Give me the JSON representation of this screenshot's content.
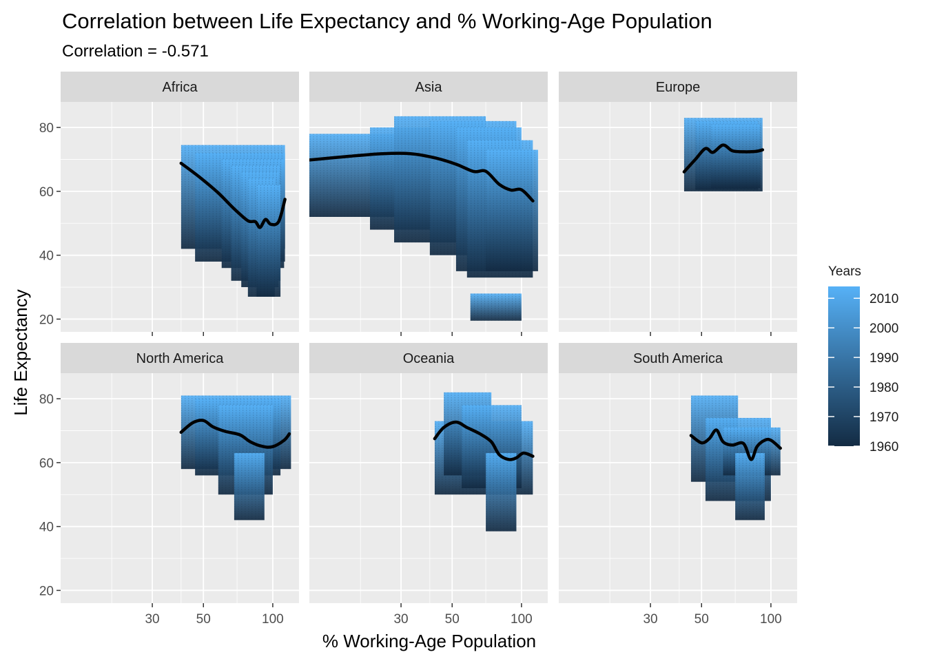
{
  "chart_data": {
    "type": "scatter",
    "title": "Correlation between Life Expectancy and % Working-Age Population",
    "subtitle": "Correlation = -0.571",
    "xlabel": "% Working-Age Population",
    "ylabel": "Life Expectancy",
    "x_scale": "log10",
    "x_ticks": [
      30,
      50,
      100
    ],
    "xlim": [
      12,
      130
    ],
    "y_ticks": [
      20,
      40,
      60,
      80
    ],
    "ylim": [
      16,
      88
    ],
    "grid": true,
    "legend": {
      "title": "Years",
      "position": "right",
      "ticks": [
        1960,
        1970,
        1980,
        1990,
        2000,
        2010
      ],
      "range": [
        1960,
        2014
      ],
      "colors": {
        "low": "#132B43",
        "high": "#56B1F7"
      }
    },
    "smooth_color": "#000000",
    "facets": [
      {
        "name": "Africa",
        "smooth": [
          [
            40,
            68.8
          ],
          [
            48,
            64.5
          ],
          [
            58,
            59.5
          ],
          [
            68,
            54.5
          ],
          [
            78,
            50.8
          ],
          [
            84,
            50.5
          ],
          [
            88,
            48.7
          ],
          [
            93,
            51.2
          ],
          [
            98,
            49.7
          ],
          [
            106,
            50.5
          ],
          [
            113,
            57.5
          ]
        ],
        "blocks": [
          {
            "x": [
              40,
              113
            ],
            "y": [
              42,
              74.5
            ]
          },
          {
            "x": [
              46,
              113
            ],
            "y": [
              38,
              72
            ]
          },
          {
            "x": [
              60,
              112
            ],
            "y": [
              36,
              70
            ]
          },
          {
            "x": [
              66,
              108
            ],
            "y": [
              32,
              68
            ]
          },
          {
            "x": [
              73,
              106
            ],
            "y": [
              30,
              66
            ]
          },
          {
            "x": [
              78,
              102
            ],
            "y": [
              27,
              64
            ]
          },
          {
            "x": [
              85,
              108
            ],
            "y": [
              27,
              62
            ]
          }
        ]
      },
      {
        "name": "Asia",
        "smooth": [
          [
            12,
            69.8
          ],
          [
            18,
            71
          ],
          [
            25,
            71.8
          ],
          [
            33,
            71.8
          ],
          [
            42,
            70.5
          ],
          [
            52,
            68.5
          ],
          [
            62,
            66.2
          ],
          [
            70,
            66.3
          ],
          [
            80,
            62.2
          ],
          [
            90,
            60.4
          ],
          [
            100,
            60.5
          ],
          [
            112,
            57
          ]
        ],
        "blocks": [
          {
            "x": [
              12,
              33
            ],
            "y": [
              52,
              78
            ]
          },
          {
            "x": [
              22,
              62
            ],
            "y": [
              48,
              80
            ]
          },
          {
            "x": [
              28,
              70
            ],
            "y": [
              44,
              83.5
            ]
          },
          {
            "x": [
              40,
              95
            ],
            "y": [
              40,
              82
            ]
          },
          {
            "x": [
              52,
              100
            ],
            "y": [
              35,
              80
            ]
          },
          {
            "x": [
              58,
              112
            ],
            "y": [
              33,
              76
            ]
          },
          {
            "x": [
              70,
              118
            ],
            "y": [
              35,
              73
            ]
          },
          {
            "x": [
              60,
              100
            ],
            "y": [
              19.5,
              28
            ]
          }
        ]
      },
      {
        "name": "Europe",
        "smooth": [
          [
            42,
            66.1
          ],
          [
            47,
            70
          ],
          [
            52,
            73.4
          ],
          [
            56,
            72.2
          ],
          [
            62,
            74.5
          ],
          [
            68,
            72.7
          ],
          [
            76,
            72.4
          ],
          [
            86,
            72.5
          ],
          [
            92,
            73
          ]
        ],
        "blocks": [
          {
            "x": [
              42,
              92
            ],
            "y": [
              60,
              83
            ]
          },
          {
            "x": [
              47,
              88
            ],
            "y": [
              60.5,
              82
            ]
          },
          {
            "x": [
              55,
              90
            ],
            "y": [
              61,
              81
            ]
          }
        ]
      },
      {
        "name": "North America",
        "smooth": [
          [
            40,
            69.5
          ],
          [
            45,
            72.5
          ],
          [
            50,
            73.2
          ],
          [
            55,
            71.2
          ],
          [
            62,
            69.8
          ],
          [
            72,
            68.7
          ],
          [
            80,
            66.5
          ],
          [
            90,
            65.1
          ],
          [
            100,
            65
          ],
          [
            112,
            67
          ],
          [
            118,
            69
          ]
        ],
        "blocks": [
          {
            "x": [
              40,
              120
            ],
            "y": [
              58,
              81
            ]
          },
          {
            "x": [
              46,
              108
            ],
            "y": [
              56,
              80
            ]
          },
          {
            "x": [
              58,
              100
            ],
            "y": [
              50,
              78
            ]
          },
          {
            "x": [
              68,
              92
            ],
            "y": [
              42,
              63
            ]
          }
        ]
      },
      {
        "name": "Oceania",
        "smooth": [
          [
            42,
            67.5
          ],
          [
            46,
            71
          ],
          [
            52,
            72.7
          ],
          [
            58,
            71
          ],
          [
            66,
            69
          ],
          [
            74,
            66.5
          ],
          [
            80,
            62.5
          ],
          [
            88,
            61
          ],
          [
            95,
            61.5
          ],
          [
            102,
            63
          ],
          [
            112,
            62
          ]
        ],
        "blocks": [
          {
            "x": [
              42,
              112
            ],
            "y": [
              50,
              73
            ]
          },
          {
            "x": [
              46,
              74
            ],
            "y": [
              56,
              82
            ]
          },
          {
            "x": [
              55,
              100
            ],
            "y": [
              52,
              78
            ]
          },
          {
            "x": [
              70,
              95
            ],
            "y": [
              38.5,
              63
            ]
          }
        ]
      },
      {
        "name": "South America",
        "smooth": [
          [
            45,
            68.5
          ],
          [
            50,
            66.2
          ],
          [
            54,
            67.5
          ],
          [
            58,
            70.2
          ],
          [
            62,
            66.5
          ],
          [
            68,
            65.5
          ],
          [
            76,
            66
          ],
          [
            82,
            61
          ],
          [
            87,
            65
          ],
          [
            94,
            67
          ],
          [
            100,
            67
          ],
          [
            110,
            64.5
          ]
        ],
        "blocks": [
          {
            "x": [
              45,
              72
            ],
            "y": [
              54,
              81
            ]
          },
          {
            "x": [
              52,
              100
            ],
            "y": [
              48,
              74
            ]
          },
          {
            "x": [
              62,
              110
            ],
            "y": [
              56,
              71
            ]
          },
          {
            "x": [
              70,
              94
            ],
            "y": [
              42,
              63
            ]
          }
        ]
      }
    ]
  }
}
